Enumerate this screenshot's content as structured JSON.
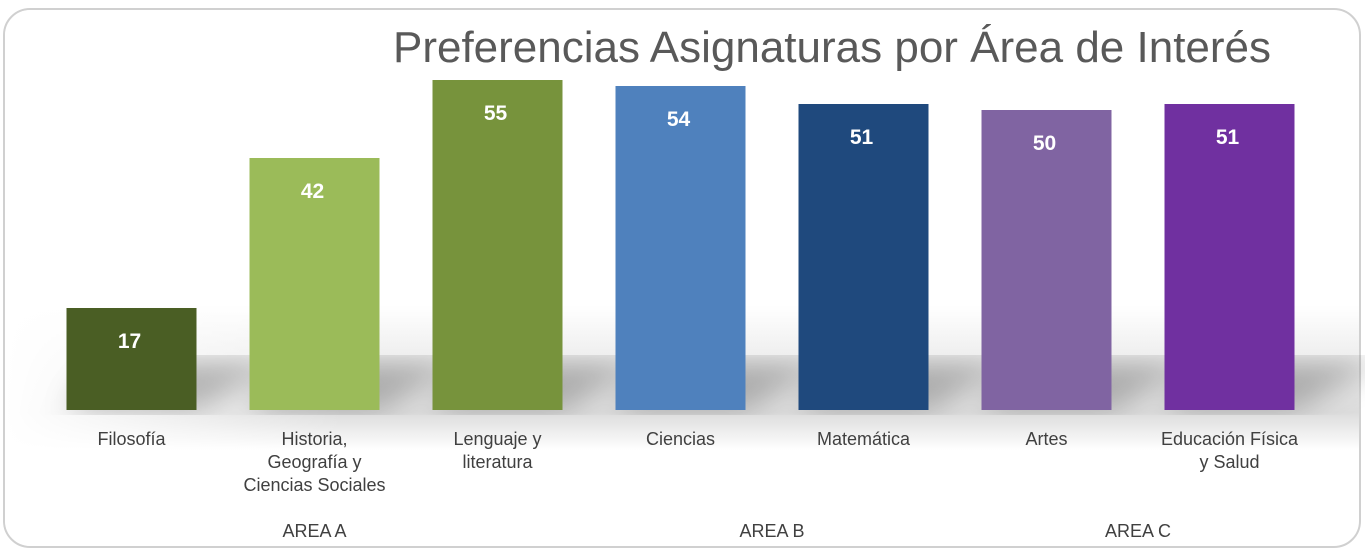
{
  "chart_data": {
    "type": "bar",
    "title": "Preferencias Asignaturas por Área de Interés",
    "ylim": [
      0,
      68
    ],
    "groups": [
      {
        "name": "AREA A",
        "categories": [
          "Filosofía",
          "Historia,\nGeografía y\nCiencias Sociales",
          "Lenguaje y\nliteratura"
        ],
        "values": [
          17,
          42,
          55
        ],
        "colors": [
          "#4a5e24",
          "#9bbb59",
          "#77933c"
        ]
      },
      {
        "name": "AREA B",
        "categories": [
          "Ciencias",
          "Matemática"
        ],
        "values": [
          54,
          51
        ],
        "colors": [
          "#4f81bd",
          "#1f497d"
        ]
      },
      {
        "name": "AREA C",
        "categories": [
          "Artes",
          "Educación Física\ny Salud"
        ],
        "values": [
          50,
          51
        ],
        "colors": [
          "#8064a2",
          "#7030a0"
        ]
      }
    ]
  }
}
